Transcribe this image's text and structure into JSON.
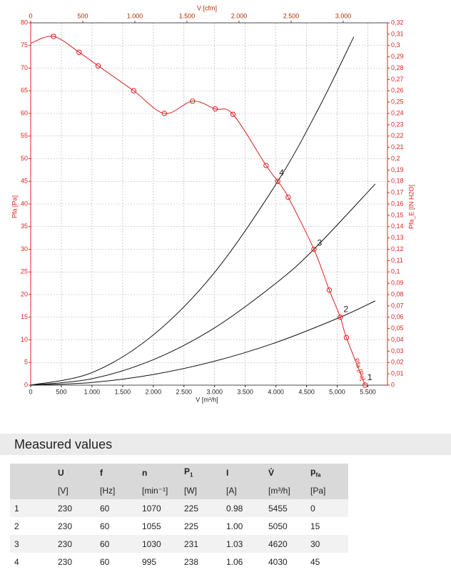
{
  "chart_data": {
    "type": "line",
    "xlabel": "V [m³/h]",
    "x2label": "V [cfm]",
    "ylabel": "Pfa [Pa]",
    "y2label": "Pfa_E [IN H2O]",
    "xlim": [
      0,
      5820
    ],
    "x2lim": [
      0,
      3425
    ],
    "ylim": [
      0,
      80
    ],
    "y2lim": [
      0,
      0.32
    ],
    "grid": true,
    "xticks": [
      0,
      500,
      {
        "value": 1000,
        "label": "1.000"
      },
      {
        "value": 1500,
        "label": "1.500"
      },
      {
        "value": 2000,
        "label": "2.000"
      },
      {
        "value": 2500,
        "label": "2.500"
      },
      {
        "value": 3000,
        "label": "3.000"
      },
      {
        "value": 3500,
        "label": "3.500"
      },
      {
        "value": 4000,
        "label": "4.000"
      },
      {
        "value": 4500,
        "label": "4.500"
      },
      {
        "value": 5000,
        "label": "5.000"
      },
      {
        "value": 5500,
        "label": "5.500"
      }
    ],
    "x2ticks": [
      0,
      500,
      {
        "value": 1000,
        "label": "1.000"
      },
      {
        "value": 1500,
        "label": "1.500"
      },
      {
        "value": 2000,
        "label": "2.000"
      },
      {
        "value": 2500,
        "label": "2.500"
      },
      {
        "value": 3000,
        "label": "3.000"
      }
    ],
    "yticks": [
      0,
      5,
      10,
      15,
      20,
      25,
      30,
      35,
      40,
      45,
      50,
      55,
      60,
      65,
      70,
      75,
      80
    ],
    "y2ticks": [
      0,
      {
        "value": 0.01,
        "label": "0,01"
      },
      {
        "value": 0.02,
        "label": "0,02"
      },
      {
        "value": 0.03,
        "label": "0,03"
      },
      {
        "value": 0.04,
        "label": "0,04"
      },
      {
        "value": 0.05,
        "label": "0,05"
      },
      {
        "value": 0.06,
        "label": "0,06"
      },
      {
        "value": 0.07,
        "label": "0,07"
      },
      {
        "value": 0.08,
        "label": "0,08"
      },
      {
        "value": 0.09,
        "label": "0,09"
      },
      {
        "value": 0.1,
        "label": "0,1"
      },
      {
        "value": 0.11,
        "label": "0,11"
      },
      {
        "value": 0.12,
        "label": "0,12"
      },
      {
        "value": 0.13,
        "label": "0,13"
      },
      {
        "value": 0.14,
        "label": "0,14"
      },
      {
        "value": 0.15,
        "label": "0,15"
      },
      {
        "value": 0.16,
        "label": "0,16"
      },
      {
        "value": 0.17,
        "label": "0,17"
      },
      {
        "value": 0.18,
        "label": "0,18"
      },
      {
        "value": 0.19,
        "label": "0,19"
      },
      {
        "value": 0.2,
        "label": "0,2"
      },
      {
        "value": 0.21,
        "label": "0,21"
      },
      {
        "value": 0.22,
        "label": "0,22"
      },
      {
        "value": 0.23,
        "label": "0,23"
      },
      {
        "value": 0.24,
        "label": "0,24"
      },
      {
        "value": 0.25,
        "label": "0,25"
      },
      {
        "value": 0.26,
        "label": "0,26"
      },
      {
        "value": 0.27,
        "label": "0,27"
      },
      {
        "value": 0.28,
        "label": "0,28"
      },
      {
        "value": 0.29,
        "label": "0,29"
      },
      {
        "value": 0.3,
        "label": "0,3"
      },
      {
        "value": 0.31,
        "label": "0,31"
      },
      {
        "value": 0.32,
        "label": "0,32"
      }
    ],
    "fan_curve": {
      "color": "#e02020",
      "x": [
        0,
        372,
        790,
        1100,
        1680,
        2180,
        2640,
        3010,
        3300,
        3840,
        4030,
        4200,
        4620,
        4870,
        5050,
        5150,
        5455
      ],
      "values": [
        75.5,
        77,
        73.5,
        70.5,
        65,
        60,
        62.7,
        61,
        59.8,
        48.5,
        45,
        41.5,
        30,
        21,
        15,
        10.5,
        0
      ]
    },
    "series": [
      {
        "color": "#111111",
        "x": [
          0,
          1000,
          2000,
          3000,
          4000,
          5050,
          5620
        ],
        "values": [
          0,
          0.59,
          2.35,
          5.29,
          9.41,
          15,
          18.6
        ]
      },
      {
        "color": "#111111",
        "x": [
          0,
          1000,
          2000,
          3000,
          4000,
          4620,
          5620
        ],
        "values": [
          0,
          1.41,
          5.62,
          12.65,
          22.5,
          30,
          44.4
        ]
      },
      {
        "color": "#111111",
        "x": [
          0,
          1000,
          2000,
          3000,
          4030,
          4700,
          5270
        ],
        "values": [
          0,
          2.77,
          11.08,
          24.9,
          45,
          61.2,
          76.9
        ]
      }
    ],
    "annotations": [
      {
        "text": "4",
        "x": 4030,
        "y": 46.5
      },
      {
        "text": "3",
        "x": 4650,
        "y": 31
      },
      {
        "text": "2",
        "x": 5080,
        "y": 16.3
      },
      {
        "text": "1",
        "x": 5470,
        "y": 1.3
      }
    ],
    "curve_label": "Pfa [Pa]"
  },
  "section_title": "Measured values",
  "table": {
    "headers": [
      "",
      "U",
      "f",
      "n",
      {
        "text": "P",
        "sub": "1"
      },
      "I",
      "V̊",
      {
        "text": "p",
        "sub": "fa"
      }
    ],
    "units": [
      "",
      "[V]",
      "[Hz]",
      "[min⁻¹]",
      "[W]",
      "[A]",
      "[m³/h]",
      "[Pa]"
    ],
    "rows": [
      [
        "1",
        "230",
        "60",
        "1070",
        "225",
        "0.98",
        "5455",
        "0"
      ],
      [
        "2",
        "230",
        "60",
        "1055",
        "225",
        "1.00",
        "5050",
        "15"
      ],
      [
        "3",
        "230",
        "60",
        "1030",
        "231",
        "1.03",
        "4620",
        "30"
      ],
      [
        "4",
        "230",
        "60",
        "995",
        "238",
        "1.06",
        "4030",
        "45"
      ]
    ]
  }
}
